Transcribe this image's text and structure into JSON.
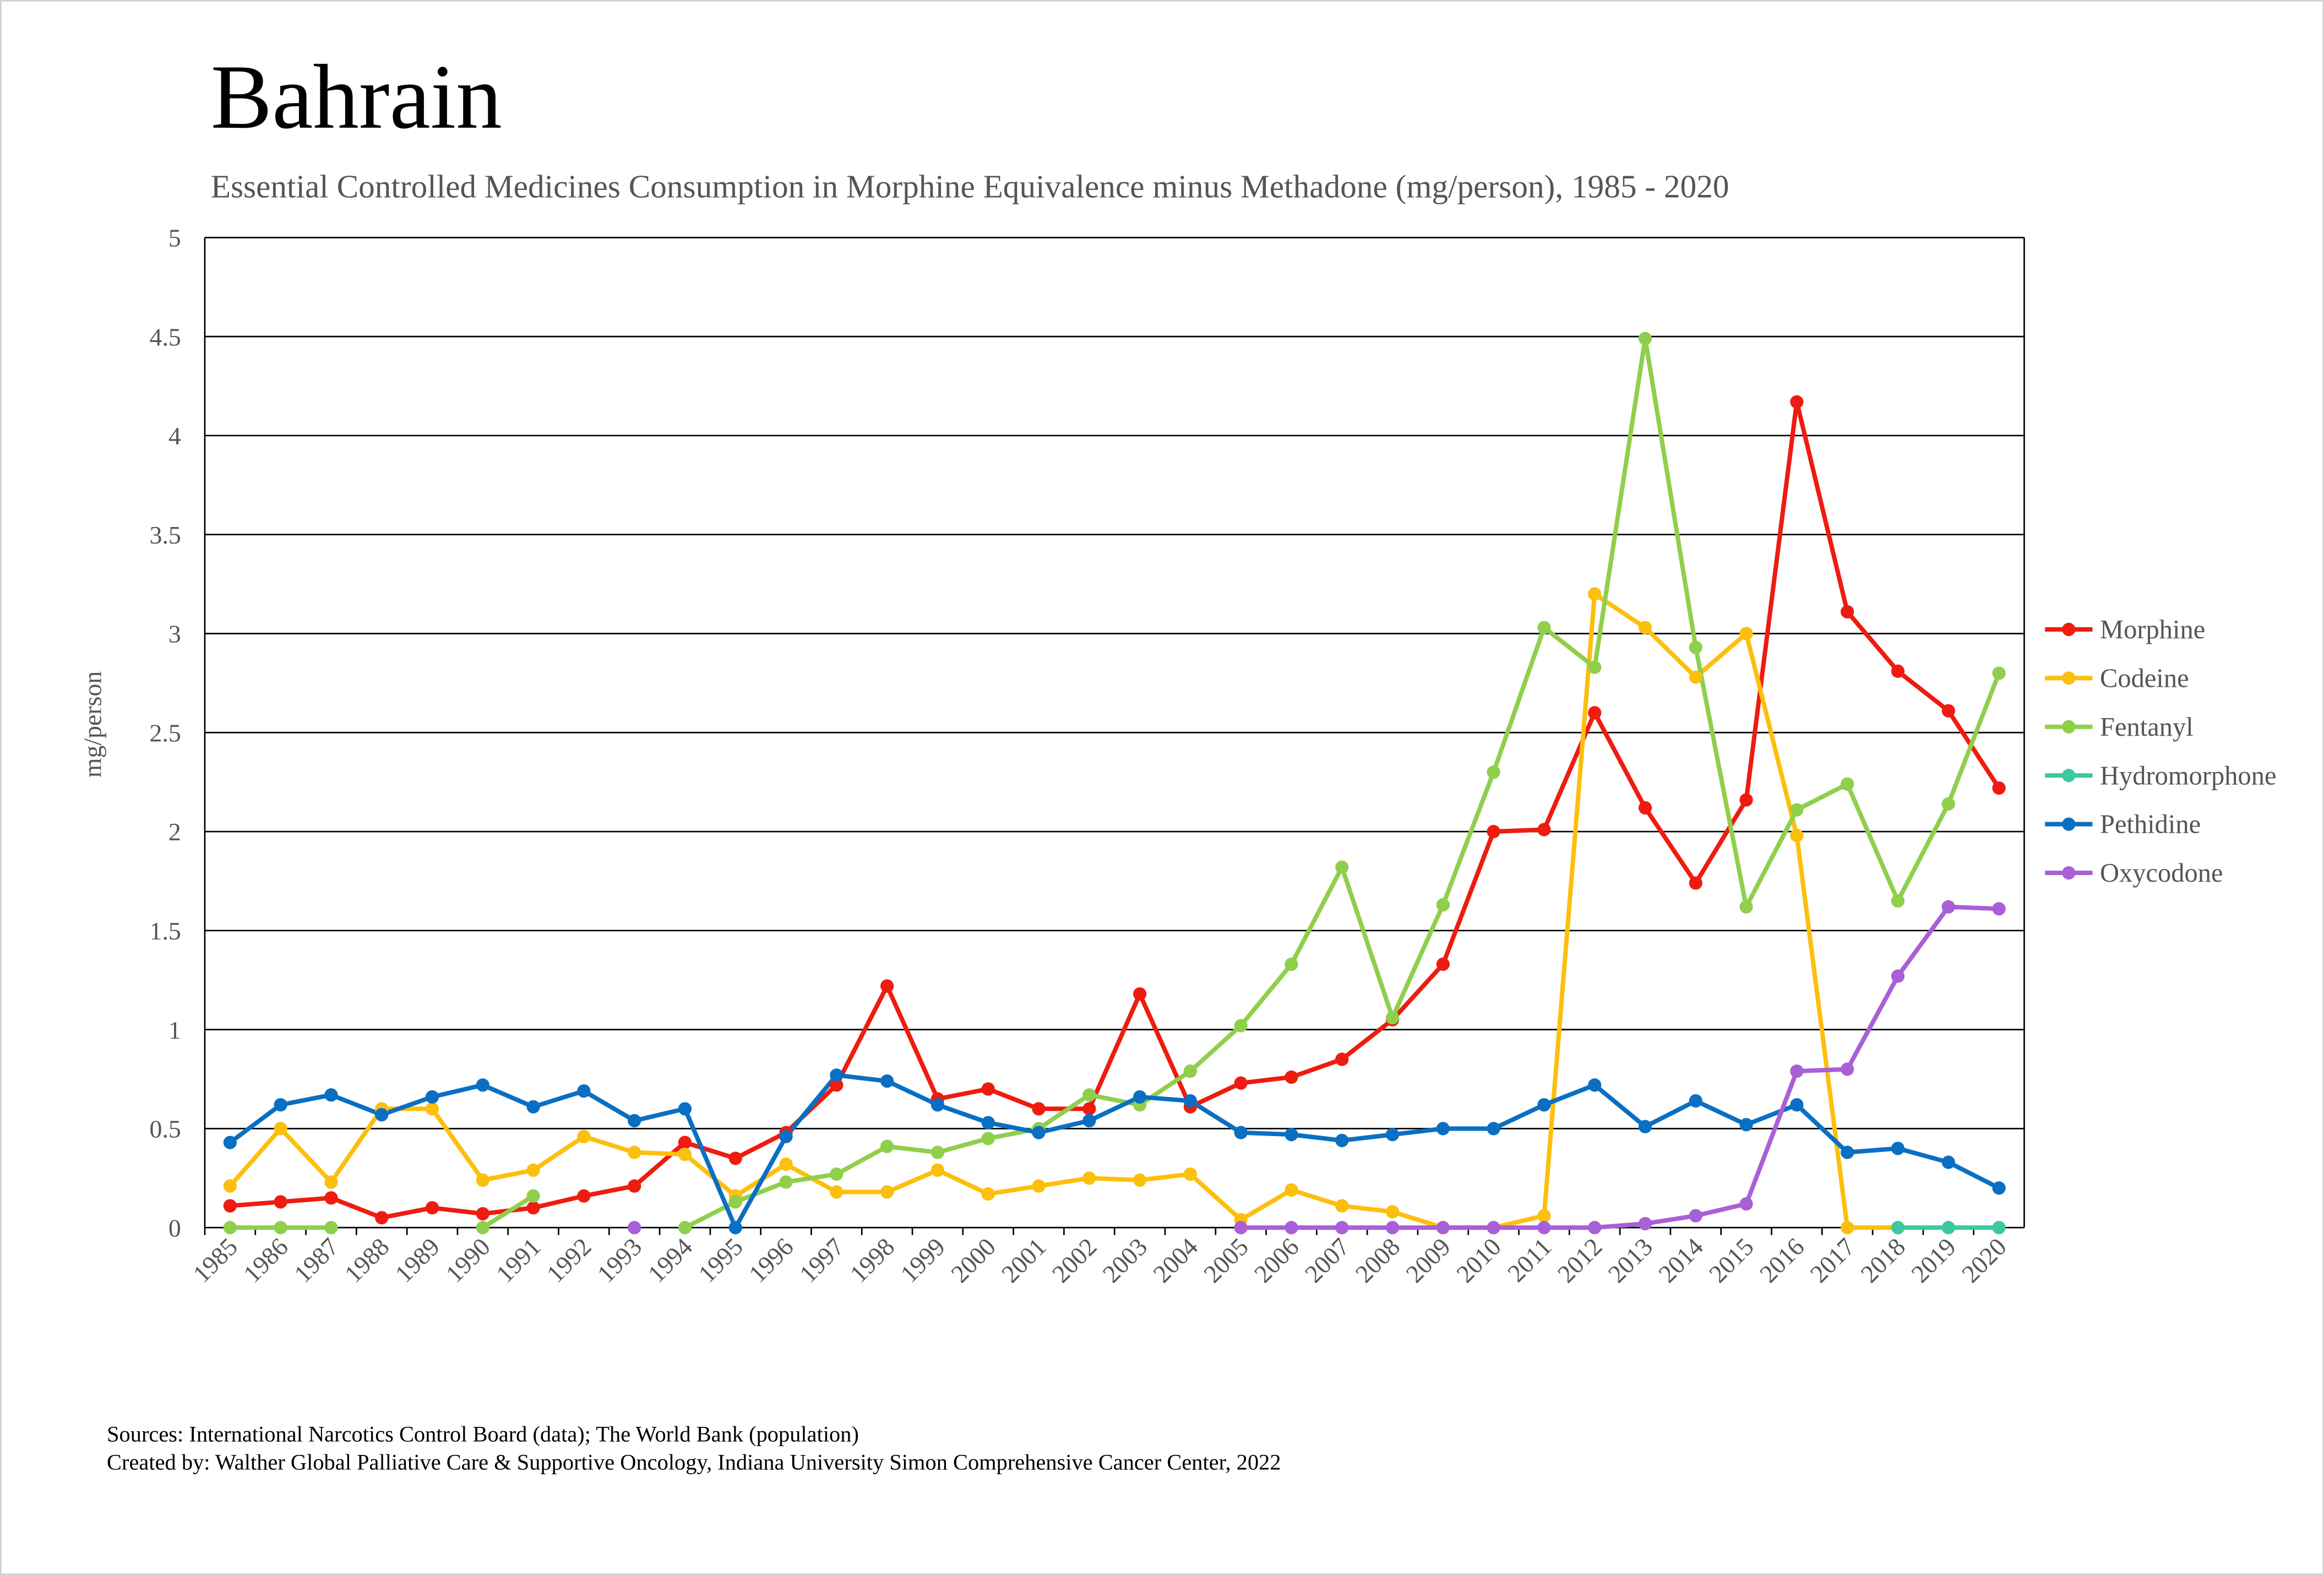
{
  "chart_data": {
    "type": "line",
    "title": "Bahrain",
    "subtitle": "Essential Controlled Medicines Consumption in Morphine Equivalence minus Methadone (mg/person), 1985 - 2020",
    "y_label": "mg/person",
    "categories": [
      "1985",
      "1986",
      "1987",
      "1988",
      "1989",
      "1990",
      "1991",
      "1992",
      "1993",
      "1994",
      "1995",
      "1996",
      "1997",
      "1998",
      "1999",
      "2000",
      "2001",
      "2002",
      "2003",
      "2004",
      "2005",
      "2006",
      "2007",
      "2008",
      "2009",
      "2010",
      "2011",
      "2012",
      "2013",
      "2014",
      "2015",
      "2016",
      "2017",
      "2018",
      "2019",
      "2020"
    ],
    "series": [
      {
        "name": "Morphine",
        "color": "#ee1c10",
        "values": [
          0.11,
          0.13,
          0.15,
          0.05,
          0.1,
          0.07,
          0.1,
          0.16,
          0.21,
          0.43,
          0.35,
          0.48,
          0.72,
          1.22,
          0.65,
          0.7,
          0.6,
          0.6,
          1.18,
          0.61,
          0.73,
          0.76,
          0.85,
          1.05,
          1.33,
          2.0,
          2.01,
          2.6,
          2.12,
          1.74,
          2.16,
          4.17,
          3.11,
          2.81,
          2.61,
          2.22
        ]
      },
      {
        "name": "Codeine",
        "color": "#fcbf0d",
        "values": [
          0.21,
          0.5,
          0.23,
          0.6,
          0.6,
          0.24,
          0.29,
          0.46,
          0.38,
          0.37,
          0.16,
          0.32,
          0.18,
          0.18,
          0.29,
          0.17,
          0.21,
          0.25,
          0.24,
          0.27,
          0.04,
          0.19,
          0.11,
          0.08,
          0,
          0,
          0.06,
          3.2,
          3.03,
          2.78,
          3.0,
          1.98,
          0,
          0,
          null,
          null
        ]
      },
      {
        "name": "Fentanyl",
        "color": "#8fcf4c",
        "values": [
          0,
          0,
          0,
          null,
          null,
          0,
          0.16,
          null,
          null,
          0,
          0.13,
          0.23,
          0.27,
          0.41,
          0.38,
          0.45,
          0.5,
          0.67,
          0.62,
          0.79,
          1.02,
          1.33,
          1.82,
          1.06,
          1.63,
          2.3,
          3.03,
          2.83,
          4.49,
          2.93,
          1.62,
          2.11,
          2.24,
          1.65,
          2.14,
          2.8
        ]
      },
      {
        "name": "Hydromorphone",
        "color": "#3cc8a0",
        "values": [
          null,
          null,
          null,
          null,
          null,
          null,
          null,
          null,
          null,
          null,
          null,
          null,
          null,
          null,
          null,
          null,
          null,
          null,
          null,
          null,
          null,
          null,
          null,
          null,
          null,
          null,
          null,
          null,
          null,
          null,
          null,
          null,
          null,
          0,
          0,
          0
        ]
      },
      {
        "name": "Pethidine",
        "color": "#0a6fc2",
        "values": [
          0.43,
          0.62,
          0.67,
          0.57,
          0.66,
          0.72,
          0.61,
          0.69,
          0.54,
          0.6,
          0,
          0.46,
          0.77,
          0.74,
          0.62,
          0.53,
          0.48,
          0.54,
          0.66,
          0.64,
          0.48,
          0.47,
          0.44,
          0.47,
          0.5,
          0.5,
          0.62,
          0.72,
          0.51,
          0.64,
          0.52,
          0.62,
          0.38,
          0.4,
          0.33,
          0.2
        ]
      },
      {
        "name": "Oxycodone",
        "color": "#a95fd6",
        "values": [
          null,
          null,
          null,
          null,
          null,
          null,
          null,
          null,
          0,
          null,
          null,
          null,
          null,
          null,
          null,
          null,
          null,
          null,
          null,
          null,
          0,
          0,
          0,
          0,
          0,
          0,
          0,
          0,
          0.02,
          0.06,
          0.12,
          0.79,
          0.8,
          1.27,
          1.62,
          1.61
        ]
      }
    ],
    "ylim": [
      0,
      5
    ],
    "yticks": [
      0,
      0.5,
      1,
      1.5,
      2,
      2.5,
      3,
      3.5,
      4,
      4.5,
      5
    ],
    "grid": true,
    "legend": "right",
    "sources": "Sources: International Narcotics Control Board (data); The World Bank (population)",
    "credits": "Created by: Walther Global Palliative Care & Supportive Oncology, Indiana University Simon Comprehensive Cancer Center, 2022"
  }
}
